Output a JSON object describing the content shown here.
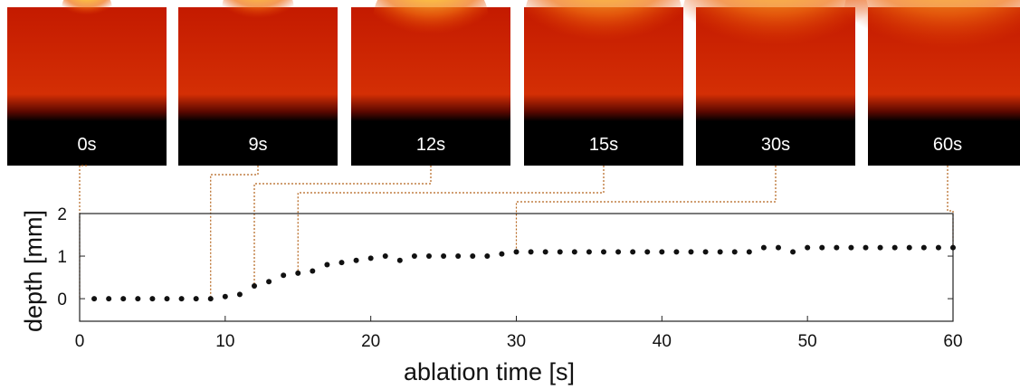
{
  "panels": [
    {
      "label": "0s"
    },
    {
      "label": "9s"
    },
    {
      "label": "12s"
    },
    {
      "label": "15s"
    },
    {
      "label": "30s"
    },
    {
      "label": "60s"
    }
  ],
  "chart_data": {
    "type": "scatter",
    "x_label": "ablation time [s]",
    "y_label": "depth [mm]",
    "x": [
      1,
      2,
      3,
      4,
      5,
      6,
      7,
      8,
      9,
      10,
      11,
      12,
      13,
      14,
      15,
      16,
      17,
      18,
      19,
      20,
      21,
      22,
      23,
      24,
      25,
      26,
      27,
      28,
      29,
      30,
      31,
      32,
      33,
      34,
      35,
      36,
      37,
      38,
      39,
      40,
      41,
      42,
      43,
      44,
      45,
      46,
      47,
      48,
      49,
      50,
      51,
      52,
      53,
      54,
      55,
      56,
      57,
      58,
      59,
      60
    ],
    "series": [
      {
        "color": "#111111",
        "values": [
          0,
          0,
          0,
          0,
          0,
          0,
          0,
          0,
          0,
          0.05,
          0.1,
          0.3,
          0.4,
          0.55,
          0.6,
          0.65,
          0.8,
          0.85,
          0.9,
          0.95,
          1.0,
          0.9,
          1.0,
          1.0,
          1.0,
          1.0,
          1.0,
          1.0,
          1.05,
          1.1,
          1.1,
          1.1,
          1.1,
          1.1,
          1.1,
          1.1,
          1.1,
          1.1,
          1.1,
          1.1,
          1.1,
          1.1,
          1.1,
          1.1,
          1.1,
          1.1,
          1.2,
          1.2,
          1.1,
          1.2,
          1.2,
          1.2,
          1.2,
          1.2,
          1.2,
          1.2,
          1.2,
          1.2,
          1.2,
          1.2
        ]
      }
    ],
    "xlim": [
      0,
      60
    ],
    "ylim": [
      -0.53,
      2
    ],
    "xticks": [
      0,
      10,
      20,
      30,
      40,
      50,
      60
    ],
    "yticks": [
      0,
      1,
      2
    ]
  }
}
